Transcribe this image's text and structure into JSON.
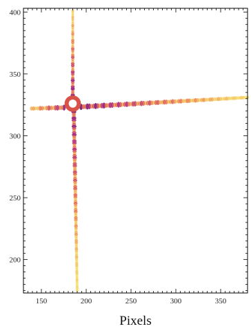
{
  "chart_data": {
    "type": "heatmap",
    "title": "",
    "xlabel": "Pixels",
    "ylabel": "",
    "xlim": [
      130,
      380
    ],
    "ylim": [
      173,
      403
    ],
    "xticks": [
      150,
      200,
      250,
      300,
      350
    ],
    "yticks": [
      200,
      250,
      300,
      350,
      400
    ],
    "minor_tick_step": 5,
    "grid": false,
    "center": [
      185,
      326
    ],
    "saturated_core_radius": 4.5,
    "colormap": [
      "#f7e840",
      "#f2b63a",
      "#e35d3c",
      "#b0287a",
      "#5a1b7a"
    ],
    "arms": [
      {
        "name": "",
        "direction": "up",
        "from": [
          185,
          326
        ],
        "to": [
          185,
          401
        ],
        "intensity_start": 1.0,
        "intensity_end": 0.25,
        "width": 2.2
      },
      {
        "name": "",
        "direction": "down",
        "from": [
          186,
          326
        ],
        "to": [
          190,
          175
        ],
        "intensity_start": 0.95,
        "intensity_end": 0.15,
        "width": 2.6
      },
      {
        "name": "",
        "direction": "right",
        "from": [
          185,
          323
        ],
        "to": [
          380,
          331
        ],
        "intensity_start": 1.0,
        "intensity_end": 0.2,
        "width": 2.3
      },
      {
        "name": "",
        "direction": "left",
        "from": [
          185,
          323
        ],
        "to": [
          139,
          322
        ],
        "intensity_start": 1.0,
        "intensity_end": 0.35,
        "width": 2.3
      }
    ]
  }
}
